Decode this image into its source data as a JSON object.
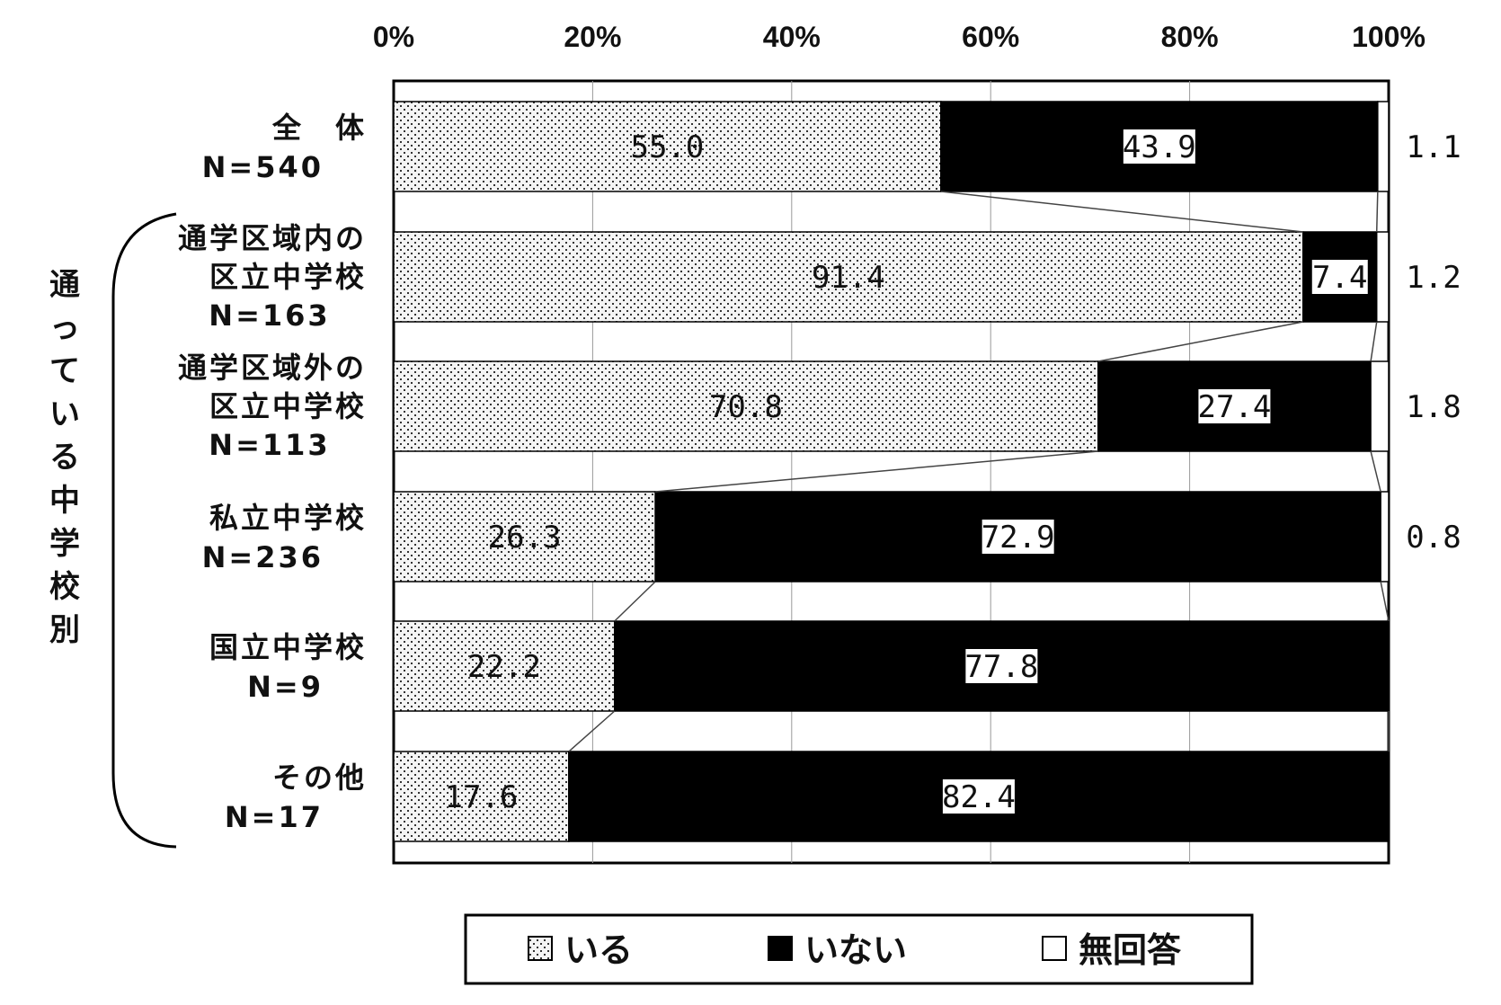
{
  "chart_data": {
    "type": "bar",
    "stacked": true,
    "orientation": "horizontal",
    "x_ticks": [
      "0%",
      "20%",
      "40%",
      "60%",
      "80%",
      "100%"
    ],
    "xlim": [
      0,
      100
    ],
    "group_label": "通っている中学校別",
    "categories": [
      {
        "name": "全　体",
        "n": "N=540"
      },
      {
        "name": "通学区域内の区立中学校",
        "line1": "通学区域内の",
        "line2": "区立中学校",
        "n": "N=163"
      },
      {
        "name": "通学区域外の区立中学校",
        "line1": "通学区域外の",
        "line2": "区立中学校",
        "n": "N=113"
      },
      {
        "name": "私立中学校",
        "n": "N=236"
      },
      {
        "name": "国立中学校",
        "n": "N=9"
      },
      {
        "name": "その他",
        "n": "N=17"
      }
    ],
    "series": [
      {
        "name": "いる",
        "values": [
          55.0,
          91.4,
          70.8,
          26.3,
          22.2,
          17.6
        ],
        "labels": [
          "55.0",
          "91.4",
          "70.8",
          "26.3",
          "22.2",
          "17.6"
        ],
        "color": "#d8d8d8",
        "pattern": "dotted"
      },
      {
        "name": "いない",
        "values": [
          43.9,
          7.4,
          27.4,
          72.9,
          77.8,
          82.4
        ],
        "labels": [
          "43.9",
          "7.4",
          "27.4",
          "72.9",
          "77.8",
          "82.4"
        ],
        "color": "#000000"
      },
      {
        "name": "無回答",
        "values": [
          1.1,
          1.2,
          1.8,
          0.8,
          0,
          0
        ],
        "labels": [
          "1.1",
          "1.2",
          "1.8",
          "0.8",
          "",
          ""
        ],
        "color": "#ffffff"
      }
    ],
    "legend_position": "bottom"
  }
}
